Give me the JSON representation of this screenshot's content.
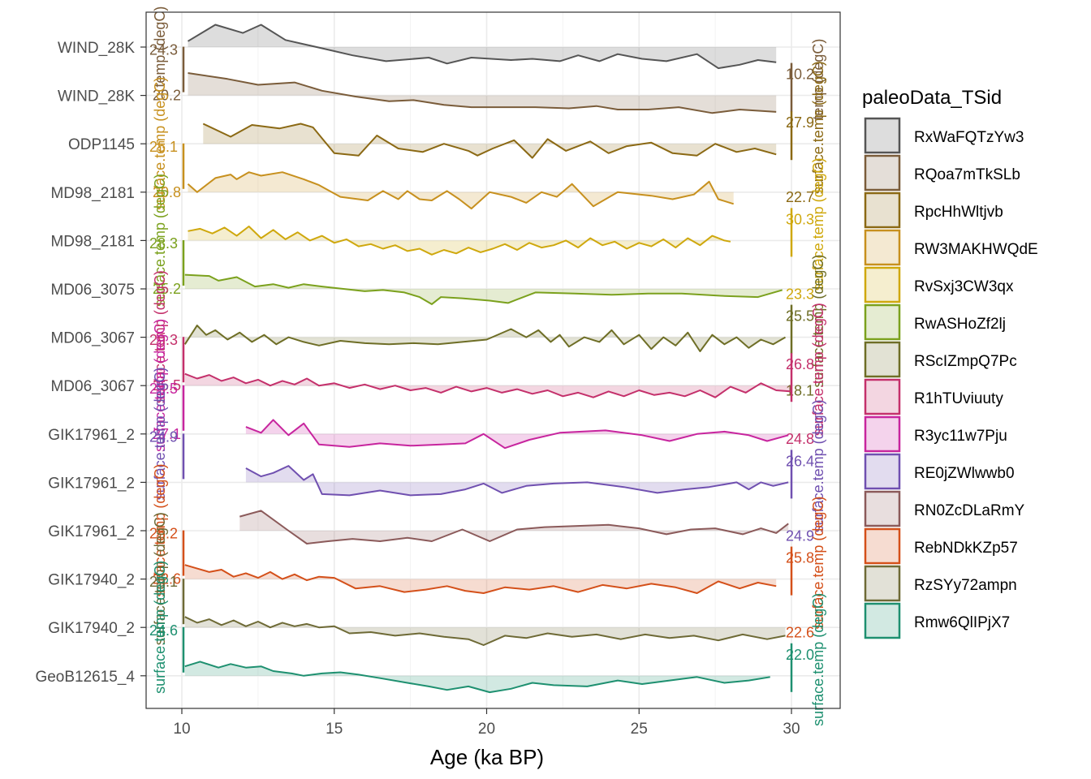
{
  "chart_data": {
    "type": "line",
    "xlabel": "Age (ka BP)",
    "xlim": [
      9,
      31
    ],
    "x_ticks": [
      10,
      15,
      20,
      25,
      30
    ],
    "grid": true,
    "legend_title": "paleoData_TSid",
    "legend_position": "right",
    "series": [
      {
        "name": "RxWaFQTzYw3",
        "row_label": "WIND_28K",
        "color": "#555555",
        "x": [
          10.2,
          11.1,
          12,
          12.6,
          13.4,
          14.6,
          15.6,
          16.7,
          18.1,
          18.7,
          19.5,
          20.8,
          21.5,
          22.4,
          23,
          23.7,
          24.3,
          25.1,
          25.9,
          26.9,
          27.6,
          28.3,
          28.9,
          29.5
        ],
        "y": [
          0.25,
          0.95,
          0.6,
          0.95,
          0.3,
          -0.05,
          -0.35,
          -0.6,
          -0.45,
          -0.7,
          -0.45,
          -0.55,
          -0.5,
          -0.6,
          -0.35,
          -0.6,
          -0.3,
          -0.5,
          -0.6,
          -0.3,
          -0.9,
          -0.75,
          -0.55,
          -0.65
        ],
        "band": [
          0,
          1
        ]
      },
      {
        "name": "RQoa7mTkSLb",
        "row_label": "WIND_28K",
        "color": "#7a5c3a",
        "x": [
          10.2,
          11.5,
          12.5,
          13.7,
          14.6,
          15.7,
          16.8,
          17.6,
          18.6,
          19.5,
          20.9,
          21.6,
          22.7,
          23.6,
          24.3,
          25.3,
          26.3,
          27.4,
          28.3,
          29.5
        ],
        "y": [
          0.95,
          0.7,
          0.45,
          0.55,
          0.2,
          -0.05,
          -0.25,
          -0.2,
          -0.4,
          -0.5,
          -0.5,
          -0.5,
          -0.55,
          -0.45,
          -0.6,
          -0.6,
          -0.5,
          -0.75,
          -0.6,
          -0.7
        ],
        "band": [
          0,
          1
        ],
        "left_labels": [
          "24.3",
          "20.2"
        ],
        "left_title": "temp (degC)",
        "right_labels": [
          "10.2"
        ],
        "right_title": "temp (degC)"
      },
      {
        "name": "RpcHhWltjvb",
        "row_label": "ODP1145",
        "color": "#8b6914",
        "x": [
          10.7,
          11.6,
          12.3,
          13.2,
          13.9,
          14.3,
          15,
          15.8,
          16.4,
          17.1,
          17.9,
          18.6,
          19.4,
          19.7,
          20.2,
          20.9,
          21.5,
          22,
          22.6,
          23.4,
          24,
          24.6,
          25.4,
          26.1,
          26.9,
          27.5,
          28.2,
          28.8,
          29.5
        ],
        "y": [
          0.85,
          0.3,
          0.8,
          0.65,
          0.85,
          0.7,
          -0.4,
          -0.5,
          0.35,
          -0.2,
          -0.35,
          0.0,
          -0.3,
          -0.5,
          -0.2,
          0.15,
          -0.6,
          0.2,
          -0.3,
          0.1,
          -0.4,
          -0.1,
          0.05,
          -0.4,
          -0.5,
          0.0,
          -0.35,
          -0.2,
          -0.45
        ],
        "band": [
          0,
          1
        ],
        "right_labels": [
          "27.9",
          "22.7"
        ],
        "right_title": "surface.temp (degC)"
      },
      {
        "name": "RW3MAKHWQdE",
        "row_label": "MD98_2181",
        "color": "#c7901e",
        "x": [
          10.2,
          10.5,
          11.1,
          11.6,
          11.8,
          12.2,
          12.6,
          13.3,
          14,
          14.5,
          15.2,
          16.1,
          16.6,
          17.1,
          17.4,
          17.8,
          18.2,
          18.7,
          19.1,
          19.5,
          20.1,
          20.8,
          21.3,
          21.8,
          22.3,
          22.8,
          23.5,
          24.3,
          25.4,
          26.1,
          26.8,
          27.3,
          27.6,
          28.1
        ],
        "y": [
          0.35,
          0.0,
          0.6,
          0.75,
          0.55,
          0.85,
          0.7,
          0.85,
          0.55,
          0.3,
          -0.2,
          -0.35,
          0.05,
          -0.3,
          0.05,
          -0.3,
          -0.35,
          0.05,
          -0.3,
          -0.7,
          0.0,
          -0.2,
          -0.45,
          0.0,
          -0.2,
          0.35,
          -0.6,
          0.0,
          -0.15,
          -0.3,
          -0.1,
          0.45,
          -0.3,
          -0.5
        ],
        "band": [
          0,
          1
        ],
        "left_labels": [
          "25.1",
          "20.8"
        ],
        "left_title": "surface.temp (degC)"
      },
      {
        "name": "RvSxj3CW3qx",
        "row_label": "MD98_2181",
        "color": "#cfa80d",
        "x": [
          10.2,
          10.6,
          11,
          11.4,
          11.8,
          12.2,
          12.6,
          13,
          13.4,
          13.8,
          14.2,
          14.6,
          15,
          15.4,
          15.8,
          16.2,
          16.6,
          17,
          17.4,
          17.8,
          18.2,
          18.6,
          19,
          19.4,
          19.8,
          20.2,
          20.6,
          21,
          21.4,
          21.8,
          22.2,
          22.6,
          23,
          23.4,
          23.8,
          24.2,
          24.6,
          25,
          25.4,
          25.8,
          26.2,
          26.6,
          27,
          27.4,
          27.8,
          28
        ],
        "y": [
          0.4,
          0.5,
          0.3,
          0.55,
          0.2,
          0.6,
          0.1,
          0.45,
          0.05,
          0.35,
          0.0,
          0.2,
          -0.1,
          0.05,
          -0.25,
          -0.15,
          -0.35,
          -0.2,
          -0.45,
          -0.35,
          -0.6,
          -0.4,
          -0.55,
          -0.3,
          -0.5,
          -0.35,
          -0.15,
          -0.4,
          -0.1,
          -0.3,
          -0.2,
          0.0,
          -0.3,
          0.1,
          -0.2,
          -0.05,
          -0.35,
          -0.1,
          -0.25,
          0.05,
          -0.3,
          0.1,
          -0.2,
          0.2,
          0.0,
          -0.05
        ],
        "band": [
          0,
          1
        ],
        "right_labels": [
          "30.3",
          "23.3"
        ],
        "right_title": "surface.temp (degC)"
      },
      {
        "name": "RwASHoZf2lj",
        "row_label": "MD06_3075",
        "color": "#7ba11d",
        "x": [
          10.1,
          10.9,
          11.2,
          11.8,
          12.4,
          13,
          13.5,
          14,
          14.6,
          15.3,
          16,
          16.6,
          17.3,
          17.8,
          18.2,
          18.5,
          19.2,
          20.1,
          20.7,
          21.6,
          22.9,
          24.1,
          25.3,
          26.4,
          27.8,
          28.9,
          29.7
        ],
        "y": [
          0.6,
          0.55,
          0.35,
          0.5,
          0.1,
          0.2,
          0.05,
          0.2,
          0.1,
          0.0,
          -0.1,
          -0.05,
          -0.15,
          -0.35,
          -0.65,
          -0.35,
          -0.4,
          -0.5,
          -0.6,
          -0.15,
          -0.2,
          -0.25,
          -0.2,
          -0.2,
          -0.3,
          -0.35,
          -0.05
        ],
        "band": [
          0,
          1
        ],
        "left_labels": [
          "28.3",
          "25.2"
        ],
        "left_title": "surface.temp (degC)"
      },
      {
        "name": "RScIZmpQ7Pc",
        "row_label": "MD06_3067",
        "color": "#6e6e26",
        "x": [
          10.1,
          10.5,
          10.8,
          11.1,
          11.5,
          11.9,
          12.3,
          12.7,
          13.1,
          13.5,
          14,
          14.5,
          15.2,
          16,
          16.8,
          17.6,
          18.4,
          19.2,
          20,
          20.8,
          21.3,
          21.7,
          22.1,
          22.4,
          22.7,
          23.2,
          23.7,
          24.1,
          24.5,
          25,
          25.4,
          25.8,
          26.2,
          26.6,
          27,
          27.4,
          27.8,
          28.2,
          28.6,
          29,
          29.4,
          29.8
        ],
        "y": [
          -0.3,
          0.5,
          0.1,
          0.3,
          -0.1,
          0.2,
          -0.2,
          0.1,
          -0.3,
          0.0,
          -0.2,
          -0.35,
          -0.15,
          -0.25,
          -0.3,
          -0.25,
          -0.3,
          -0.2,
          -0.1,
          0.35,
          0.0,
          0.3,
          -0.2,
          0.1,
          -0.4,
          0.0,
          -0.2,
          0.3,
          -0.3,
          0.1,
          -0.5,
          0.0,
          -0.35,
          0.2,
          -0.6,
          0.1,
          -0.3,
          0.0,
          -0.45,
          -0.1,
          -0.3,
          0.0
        ],
        "band": [
          0,
          1
        ],
        "right_labels": [
          "25.5",
          "18.1"
        ],
        "right_title": "surface.temp (degC)"
      },
      {
        "name": "R1hTUviuuty",
        "row_label": "MD06_3067",
        "color": "#c4306b",
        "x": [
          10.1,
          10.5,
          10.9,
          11.3,
          11.7,
          12.1,
          12.5,
          12.9,
          13.3,
          13.7,
          14.1,
          14.5,
          15,
          15.5,
          16,
          16.5,
          17,
          17.5,
          18,
          18.5,
          19,
          19.5,
          20,
          20.5,
          21,
          21.5,
          22,
          22.5,
          23,
          23.5,
          24,
          24.5,
          25,
          25.5,
          26,
          26.5,
          27,
          27.5,
          28,
          28.5,
          29,
          29.5,
          30
        ],
        "y": [
          0.5,
          0.3,
          0.45,
          0.2,
          0.35,
          0.1,
          0.25,
          0.0,
          0.2,
          0.05,
          0.3,
          0.0,
          0.1,
          -0.1,
          0.05,
          -0.15,
          0.0,
          -0.2,
          -0.1,
          -0.3,
          -0.05,
          -0.25,
          -0.1,
          -0.3,
          -0.15,
          -0.35,
          -0.2,
          -0.45,
          -0.3,
          -0.5,
          -0.25,
          -0.45,
          -0.2,
          -0.4,
          -0.3,
          -0.45,
          -0.2,
          -0.5,
          -0.05,
          -0.3,
          0.1,
          -0.2,
          -0.25
        ],
        "band": [
          0,
          1
        ],
        "left_labels": [
          "29.3",
          "25.5"
        ],
        "left_title": "surface.temp (degC)",
        "right_labels": [
          "26.8",
          "24.8"
        ],
        "right_title": "surface.temp (degC)"
      },
      {
        "name": "R3yc11w7Pju",
        "row_label": "GIK17961_2",
        "color": "#c7259e",
        "x": [
          12.1,
          12.6,
          13,
          13.5,
          14,
          14.5,
          15.5,
          16.5,
          17.5,
          18.5,
          19.3,
          19.9,
          20.6,
          21.4,
          22.4,
          23.9,
          25.1,
          26,
          26.9,
          27.8,
          28.6,
          29.2,
          29.9
        ],
        "y": [
          0.3,
          0.05,
          0.6,
          -0.05,
          0.45,
          -0.45,
          -0.55,
          -0.4,
          -0.5,
          -0.45,
          -0.4,
          0.0,
          -0.6,
          -0.25,
          0.05,
          0.15,
          -0.05,
          -0.3,
          0.0,
          0.1,
          -0.05,
          -0.3,
          -0.05
        ],
        "band": [
          0,
          1
        ],
        "left_labels": [
          "28.5",
          "27.1"
        ],
        "left_title": "surface.temp (degC)"
      },
      {
        "name": "RE0jZWlwwb0",
        "row_label": "GIK17961_2",
        "color": "#7050b0",
        "x": [
          12.1,
          12.6,
          13,
          13.5,
          14,
          14.3,
          14.6,
          15.5,
          16.5,
          17.5,
          18.5,
          19.3,
          19.9,
          20.5,
          21.3,
          22.2,
          23.3,
          24.5,
          25.6,
          26.5,
          27.3,
          28.2,
          28.6,
          29,
          29.4,
          29.9
        ],
        "y": [
          0.6,
          0.25,
          0.4,
          0.7,
          0.1,
          0.35,
          -0.5,
          -0.55,
          -0.35,
          -0.55,
          -0.5,
          -0.3,
          -0.05,
          -0.45,
          -0.15,
          -0.05,
          0.0,
          -0.2,
          -0.45,
          -0.3,
          -0.2,
          0.0,
          -0.3,
          0.0,
          -0.15,
          0.0
        ],
        "band": [
          0,
          1
        ],
        "left_labels": [
          "24.9"
        ],
        "left_title": "surface.temp (degC)",
        "right_labels": [
          "26.4",
          "24.9"
        ],
        "right_title": "surface.temp (degC)"
      },
      {
        "name": "RN0ZcDLaRmY",
        "row_label": "GIK17961_2",
        "color": "#8b5a5a",
        "x": [
          11.9,
          12.6,
          13.5,
          14.1,
          14.8,
          15.6,
          16.5,
          17.4,
          18.2,
          19.2,
          20.1,
          21,
          21.9,
          22.9,
          24,
          25,
          25.9,
          26.7,
          27.5,
          28.4,
          29,
          29.5,
          29.9
        ],
        "y": [
          0.6,
          0.85,
          0.0,
          -0.55,
          -0.45,
          -0.35,
          -0.45,
          -0.3,
          -0.45,
          0.05,
          -0.45,
          0.05,
          0.15,
          0.2,
          0.25,
          0.1,
          -0.15,
          0.05,
          0.1,
          -0.15,
          0.1,
          -0.1,
          0.3
        ],
        "band": [
          0,
          1
        ]
      },
      {
        "name": "RebNDkKZp57",
        "row_label": "GIK17940_2",
        "color": "#d4501a",
        "x": [
          10.1,
          10.5,
          10.9,
          11.3,
          11.7,
          12.1,
          12.5,
          12.9,
          13.3,
          13.7,
          14.1,
          14.5,
          15,
          15.7,
          16.5,
          17.3,
          18,
          18.7,
          19.3,
          19.9,
          20.6,
          21.4,
          22.2,
          23,
          23.8,
          24.6,
          25.4,
          26.2,
          26.9,
          27.6,
          28.3,
          28.9,
          29.5
        ],
        "y": [
          0.6,
          0.45,
          0.3,
          0.4,
          0.1,
          0.25,
          0.05,
          0.3,
          0.0,
          0.2,
          -0.05,
          0.1,
          0.05,
          -0.4,
          -0.3,
          -0.55,
          -0.45,
          -0.3,
          -0.5,
          -0.6,
          -0.35,
          -0.45,
          -0.3,
          -0.55,
          -0.25,
          -0.4,
          -0.2,
          -0.35,
          -0.6,
          -0.1,
          -0.4,
          -0.15,
          -0.3
        ],
        "band": [
          0,
          1
        ],
        "left_labels": [
          "25.2",
          "22.6"
        ],
        "left_title": "surface.temp (degC)",
        "right_labels": [
          "25.8",
          "22.6"
        ],
        "right_title": "surface.temp (degC)"
      },
      {
        "name": "RzSYy72ampn",
        "row_label": "GIK17940_2",
        "color": "#6e6a36",
        "x": [
          10.1,
          10.5,
          10.9,
          11.3,
          11.7,
          12.1,
          12.5,
          12.9,
          13.3,
          13.7,
          14.1,
          14.5,
          15,
          15.5,
          16.2,
          17,
          17.8,
          18.6,
          19.4,
          19.9,
          20.6,
          21.3,
          22,
          22.8,
          23.6,
          24.4,
          25.2,
          26,
          26.8,
          27.6,
          28.4,
          29.2,
          29.8
        ],
        "y": [
          0.45,
          0.2,
          0.35,
          0.1,
          0.3,
          0.05,
          0.25,
          0.0,
          0.2,
          0.05,
          0.15,
          0.0,
          0.05,
          -0.25,
          -0.2,
          -0.35,
          -0.25,
          -0.4,
          -0.5,
          -0.75,
          -0.35,
          -0.45,
          -0.25,
          -0.4,
          -0.3,
          -0.5,
          -0.3,
          -0.45,
          -0.35,
          -0.55,
          -0.3,
          -0.5,
          -0.35
        ],
        "band": [
          0,
          1
        ],
        "left_labels": [
          "29.1"
        ],
        "left_title": "surface.temp (degC)"
      },
      {
        "name": "Rmw6QlIPjX7",
        "row_label": "GeoB12615_4",
        "color": "#1e9070",
        "x": [
          10.1,
          10.6,
          11.2,
          11.6,
          12.1,
          12.6,
          13,
          13.6,
          14,
          14.6,
          15.2,
          15.8,
          16.5,
          17.4,
          18.1,
          18.7,
          19.4,
          20.1,
          20.8,
          21.5,
          22.2,
          23.3,
          24.3,
          25.1,
          26,
          26.9,
          27.8,
          28.6,
          29.3
        ],
        "y": [
          0.4,
          0.6,
          0.35,
          0.5,
          0.35,
          0.4,
          0.2,
          0.1,
          0.0,
          0.1,
          0.15,
          0.05,
          -0.1,
          -0.3,
          -0.45,
          -0.6,
          -0.45,
          -0.7,
          -0.55,
          -0.3,
          -0.4,
          -0.45,
          -0.2,
          -0.35,
          -0.2,
          -0.05,
          -0.3,
          -0.2,
          -0.05
        ],
        "band": [
          0,
          1
        ],
        "left_labels": [
          "24.6"
        ],
        "left_title": "surface.temp (degC)",
        "right_labels": [
          "22.0"
        ],
        "right_title": "surface.temp (degC)"
      }
    ]
  }
}
